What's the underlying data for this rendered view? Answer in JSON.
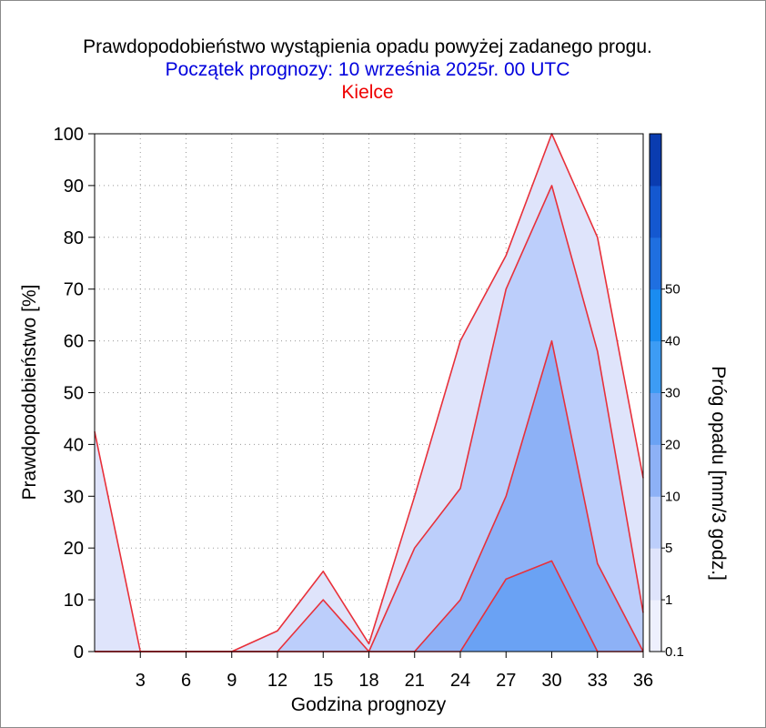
{
  "chart_data": {
    "type": "area",
    "title": "Prawdopodobieństwo wystąpienia opadu powyżej zadanego progu.",
    "subtitle": "Początek prognozy: 10 września 2025r. 00 UTC",
    "location": "Kielce",
    "xlabel": "Godzina prognozy",
    "ylabel": "Prawdopodobieństwo [%]",
    "colorbar_label": "Próg opadu [mm/3 godz.]",
    "x": [
      0,
      3,
      6,
      9,
      12,
      15,
      18,
      21,
      24,
      27,
      30,
      33,
      36
    ],
    "xticks": [
      "3",
      "6",
      "9",
      "12",
      "15",
      "18",
      "21",
      "24",
      "27",
      "30",
      "33",
      "36"
    ],
    "xlim": [
      0,
      36
    ],
    "ylim": [
      0,
      100
    ],
    "yticks": [
      "0",
      "10",
      "20",
      "30",
      "40",
      "50",
      "60",
      "70",
      "80",
      "90",
      "100"
    ],
    "grid": true,
    "series": [
      {
        "name": "0.1",
        "color": "#dfe4fb",
        "values": [
          42.5,
          0,
          0,
          0,
          4,
          15.5,
          1.5,
          30,
          60,
          76.5,
          100,
          80,
          33.5
        ]
      },
      {
        "name": "1",
        "color": "#bccefb",
        "values": [
          0,
          0,
          0,
          0,
          0,
          10,
          0,
          20,
          31.5,
          70,
          90,
          58,
          7.5
        ]
      },
      {
        "name": "5",
        "color": "#8db1f6",
        "values": [
          0,
          0,
          0,
          0,
          0,
          0,
          0,
          0,
          10,
          30,
          60,
          17,
          0
        ]
      },
      {
        "name": "10",
        "color": "#6aa2f4",
        "values": [
          0,
          0,
          0,
          0,
          0,
          0,
          0,
          0,
          0,
          14,
          17.5,
          0,
          0
        ]
      }
    ],
    "colorbar": {
      "ticks": [
        "0.1",
        "1",
        "5",
        "10",
        "20",
        "30",
        "40",
        "50"
      ],
      "colors": [
        "#eef0fd",
        "#dfe4fb",
        "#bccefb",
        "#8db1f6",
        "#6aa2f4",
        "#3d9cf4",
        "#1a8cf0",
        "#1f6fe0",
        "#1458d0",
        "#0a3cb0"
      ]
    }
  }
}
